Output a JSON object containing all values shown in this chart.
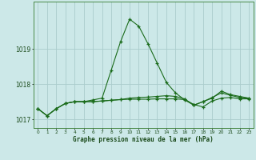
{
  "background_color": "#cce8e8",
  "grid_color": "#aacccc",
  "line_color": "#1a6b1a",
  "hours": [
    0,
    1,
    2,
    3,
    4,
    5,
    6,
    7,
    8,
    9,
    10,
    11,
    12,
    13,
    14,
    15,
    16,
    17,
    18,
    19,
    20,
    21,
    22,
    23
  ],
  "line1": [
    1017.3,
    1017.1,
    1017.3,
    1017.45,
    1017.5,
    1017.5,
    1017.55,
    1017.6,
    1018.4,
    1019.2,
    1019.85,
    1019.65,
    1019.15,
    1018.6,
    1018.05,
    1017.75,
    1017.55,
    1017.4,
    1017.5,
    1017.6,
    1017.8,
    1017.7,
    1017.65,
    1017.6
  ],
  "line2": [
    1017.3,
    1017.1,
    1017.3,
    1017.45,
    1017.5,
    1017.5,
    1017.5,
    1017.52,
    1017.54,
    1017.56,
    1017.57,
    1017.57,
    1017.57,
    1017.58,
    1017.58,
    1017.58,
    1017.56,
    1017.42,
    1017.35,
    1017.52,
    1017.6,
    1017.62,
    1017.58,
    1017.58
  ],
  "line3": [
    1017.3,
    1017.1,
    1017.3,
    1017.45,
    1017.5,
    1017.5,
    1017.5,
    1017.52,
    1017.54,
    1017.56,
    1017.6,
    1017.62,
    1017.63,
    1017.65,
    1017.67,
    1017.65,
    1017.58,
    1017.4,
    1017.5,
    1017.62,
    1017.75,
    1017.68,
    1017.62,
    1017.6
  ],
  "ylim_min": 1016.75,
  "ylim_max": 1020.35,
  "yticks": [
    1017,
    1018,
    1019
  ],
  "xlabel": "Graphe pression niveau de la mer (hPa)"
}
